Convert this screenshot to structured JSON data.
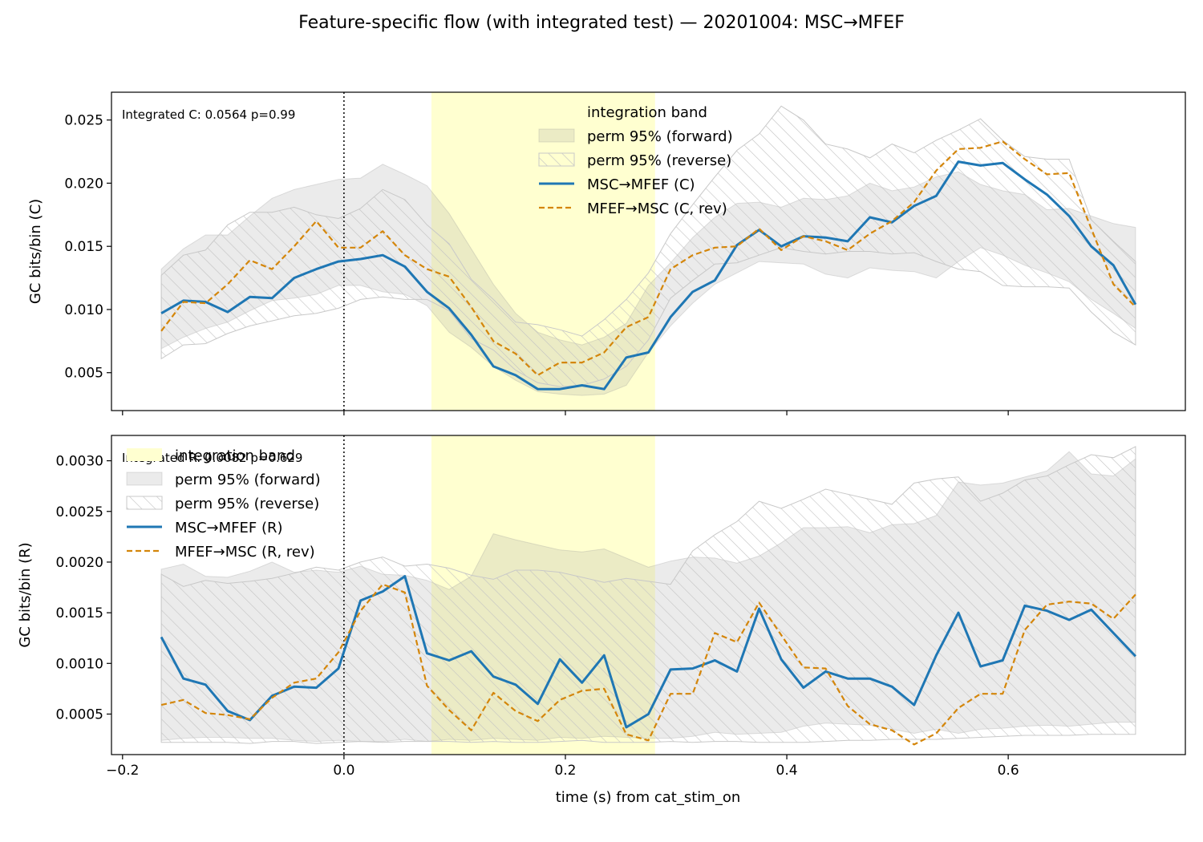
{
  "title": "Feature-specific flow (with integrated test) — 20201004: MSC→MFEF",
  "xlabel": "time (s) from cat_stim_on",
  "colors": {
    "forward": "#1f77b4",
    "reverse": "#d4860b",
    "band": "#ffffd0",
    "perm_fill": "#d8d8d8",
    "hatch": "#c8c8c8"
  },
  "chart_data": [
    {
      "type": "line",
      "ylabel": "GC bits/bin (C)",
      "xlim": [
        -0.21,
        0.76
      ],
      "ylim": [
        0.002,
        0.0272
      ],
      "xticks": [
        "−0.2",
        "0.0",
        "0.2",
        "0.4",
        "0.6"
      ],
      "yticks": [
        "0.005",
        "0.010",
        "0.015",
        "0.020",
        "0.025"
      ],
      "xtick_values": [
        -0.2,
        0.0,
        0.2,
        0.4,
        0.6
      ],
      "ytick_values": [
        0.005,
        0.01,
        0.015,
        0.02,
        0.025
      ],
      "show_xtick_labels": false,
      "annotation": "Integrated C: 0.0564  p=0.99",
      "integration_band": [
        0.079,
        0.281
      ],
      "event_line_x": 0.0,
      "legend_position": "upper center",
      "legend": [
        "integration band",
        "perm 95% (forward)",
        "perm 95% (reverse)",
        "MSC→MFEF (C)",
        "MFEF→MSC (C, rev)"
      ],
      "x": [
        -0.165,
        -0.145,
        -0.125,
        -0.105,
        -0.085,
        -0.065,
        -0.045,
        -0.025,
        -0.005,
        0.015,
        0.035,
        0.055,
        0.075,
        0.095,
        0.115,
        0.135,
        0.155,
        0.175,
        0.195,
        0.215,
        0.235,
        0.255,
        0.275,
        0.295,
        0.315,
        0.335,
        0.355,
        0.375,
        0.395,
        0.415,
        0.435,
        0.455,
        0.475,
        0.495,
        0.515,
        0.535,
        0.555,
        0.575,
        0.595,
        0.615,
        0.635,
        0.655,
        0.675,
        0.695,
        0.715
      ],
      "series": [
        {
          "name": "MSC→MFEF (C)",
          "style": "solid",
          "values": [
            0.0097,
            0.0107,
            0.0106,
            0.0098,
            0.011,
            0.0109,
            0.0125,
            0.0132,
            0.0138,
            0.014,
            0.0143,
            0.0134,
            0.0114,
            0.0101,
            0.008,
            0.0055,
            0.0048,
            0.0037,
            0.0037,
            0.004,
            0.0037,
            0.0062,
            0.0066,
            0.0094,
            0.0114,
            0.0123,
            0.0151,
            0.0163,
            0.015,
            0.0158,
            0.0157,
            0.0154,
            0.0173,
            0.0169,
            0.0182,
            0.019,
            0.0217,
            0.0214,
            0.0216,
            0.0203,
            0.0191,
            0.0174,
            0.015,
            0.0135,
            0.0104
          ]
        },
        {
          "name": "MFEF→MSC (C, rev)",
          "style": "dashed",
          "values": [
            0.0083,
            0.0106,
            0.0105,
            0.012,
            0.0139,
            0.0132,
            0.015,
            0.017,
            0.0149,
            0.0149,
            0.0162,
            0.0143,
            0.0132,
            0.0126,
            0.0102,
            0.0075,
            0.0065,
            0.0048,
            0.0058,
            0.0058,
            0.0066,
            0.0086,
            0.0094,
            0.0132,
            0.0143,
            0.0149,
            0.015,
            0.0164,
            0.0147,
            0.0158,
            0.0154,
            0.0147,
            0.016,
            0.017,
            0.0185,
            0.021,
            0.0227,
            0.0228,
            0.0233,
            0.0219,
            0.0207,
            0.0208,
            0.0164,
            0.012,
            0.0102
          ]
        }
      ],
      "perm_forward": {
        "upper": [
          0.0132,
          0.0148,
          0.0159,
          0.0159,
          0.0174,
          0.0188,
          0.0195,
          0.0199,
          0.0203,
          0.0204,
          0.0215,
          0.0207,
          0.0198,
          0.0176,
          0.0148,
          0.012,
          0.0097,
          0.0082,
          0.0076,
          0.0072,
          0.0078,
          0.0089,
          0.0119,
          0.0137,
          0.0157,
          0.0173,
          0.0184,
          0.0185,
          0.0181,
          0.0188,
          0.0187,
          0.019,
          0.02,
          0.0194,
          0.0197,
          0.0205,
          0.0209,
          0.0199,
          0.0194,
          0.0191,
          0.0179,
          0.018,
          0.0174,
          0.0168,
          0.0165
        ],
        "lower": [
          0.0069,
          0.0078,
          0.0085,
          0.009,
          0.0099,
          0.0107,
          0.0109,
          0.0112,
          0.0119,
          0.0119,
          0.0114,
          0.0112,
          0.0103,
          0.0082,
          0.007,
          0.0055,
          0.0044,
          0.0035,
          0.0033,
          0.0032,
          0.0033,
          0.004,
          0.0066,
          0.0087,
          0.0105,
          0.012,
          0.0129,
          0.0138,
          0.0137,
          0.0136,
          0.0128,
          0.0125,
          0.0133,
          0.0131,
          0.013,
          0.0125,
          0.0138,
          0.0149,
          0.0143,
          0.0135,
          0.0129,
          0.0122,
          0.0108,
          0.0097,
          0.0085
        ]
      },
      "perm_reverse": {
        "upper": [
          0.0127,
          0.0143,
          0.0147,
          0.0167,
          0.0177,
          0.0177,
          0.0181,
          0.0175,
          0.0172,
          0.018,
          0.0195,
          0.0187,
          0.0167,
          0.0152,
          0.0124,
          0.0108,
          0.009,
          0.0088,
          0.0084,
          0.0079,
          0.0092,
          0.0108,
          0.0129,
          0.016,
          0.0183,
          0.0205,
          0.0226,
          0.0239,
          0.0261,
          0.025,
          0.0231,
          0.0227,
          0.022,
          0.0231,
          0.0224,
          0.0234,
          0.0242,
          0.0251,
          0.0234,
          0.0221,
          0.0219,
          0.0219,
          0.0171,
          0.0154,
          0.0138
        ],
        "lower": [
          0.0061,
          0.0072,
          0.0073,
          0.0081,
          0.0087,
          0.0091,
          0.0095,
          0.0097,
          0.0101,
          0.0108,
          0.011,
          0.0108,
          0.0108,
          0.0099,
          0.0077,
          0.0068,
          0.0052,
          0.0042,
          0.0039,
          0.004,
          0.0045,
          0.0055,
          0.0076,
          0.0109,
          0.0123,
          0.0136,
          0.0137,
          0.0143,
          0.0149,
          0.0146,
          0.0144,
          0.0146,
          0.0146,
          0.0144,
          0.0145,
          0.0138,
          0.0132,
          0.013,
          0.0119,
          0.0118,
          0.0118,
          0.0117,
          0.0098,
          0.0082,
          0.0072
        ]
      }
    },
    {
      "type": "line",
      "ylabel": "GC bits/bin (R)",
      "xlim": [
        -0.21,
        0.76
      ],
      "ylim": [
        0.0001,
        0.00325
      ],
      "xticks": [
        "−0.2",
        "0.0",
        "0.2",
        "0.4",
        "0.6"
      ],
      "yticks": [
        "0.0005",
        "0.0010",
        "0.0015",
        "0.0020",
        "0.0025",
        "0.0030"
      ],
      "xtick_values": [
        -0.2,
        0.0,
        0.2,
        0.4,
        0.6
      ],
      "ytick_values": [
        0.0005,
        0.001,
        0.0015,
        0.002,
        0.0025,
        0.003
      ],
      "show_xtick_labels": true,
      "annotation": "Integrated R: 0.0082  p=0.629",
      "integration_band": [
        0.079,
        0.281
      ],
      "event_line_x": 0.0,
      "legend_position": "upper left",
      "legend": [
        "integration band",
        "perm 95% (forward)",
        "perm 95% (reverse)",
        "MSC→MFEF (R)",
        "MFEF→MSC (R, rev)"
      ],
      "x": [
        -0.165,
        -0.145,
        -0.125,
        -0.105,
        -0.085,
        -0.065,
        -0.045,
        -0.025,
        -0.005,
        0.015,
        0.035,
        0.055,
        0.075,
        0.095,
        0.115,
        0.135,
        0.155,
        0.175,
        0.195,
        0.215,
        0.235,
        0.255,
        0.275,
        0.295,
        0.315,
        0.335,
        0.355,
        0.375,
        0.395,
        0.415,
        0.435,
        0.455,
        0.475,
        0.495,
        0.515,
        0.535,
        0.555,
        0.575,
        0.595,
        0.615,
        0.635,
        0.655,
        0.675,
        0.695,
        0.715
      ],
      "series": [
        {
          "name": "MSC→MFEF (R)",
          "style": "solid",
          "values": [
            0.00126,
            0.00085,
            0.00079,
            0.00053,
            0.00044,
            0.00068,
            0.00077,
            0.00076,
            0.00095,
            0.00162,
            0.00171,
            0.00186,
            0.0011,
            0.00103,
            0.00112,
            0.00087,
            0.00079,
            0.0006,
            0.00104,
            0.00081,
            0.00108,
            0.00037,
            0.0005,
            0.00094,
            0.00095,
            0.00103,
            0.00092,
            0.00154,
            0.00104,
            0.00076,
            0.00092,
            0.00085,
            0.00085,
            0.00077,
            0.00059,
            0.00108,
            0.0015,
            0.00097,
            0.00103,
            0.00157,
            0.00152,
            0.00143,
            0.00153,
            0.0013,
            0.00107
          ]
        },
        {
          "name": "MFEF→MSC (R, rev)",
          "style": "dashed",
          "values": [
            0.00059,
            0.00064,
            0.00051,
            0.00049,
            0.00045,
            0.00066,
            0.00081,
            0.00085,
            0.00111,
            0.00152,
            0.00178,
            0.0017,
            0.00078,
            0.00054,
            0.00034,
            0.00071,
            0.00053,
            0.00043,
            0.00064,
            0.00073,
            0.00075,
            0.0003,
            0.00024,
            0.0007,
            0.0007,
            0.0013,
            0.00121,
            0.0016,
            0.00128,
            0.00096,
            0.00095,
            0.00058,
            0.0004,
            0.00034,
            0.0002,
            0.00031,
            0.00056,
            0.0007,
            0.0007,
            0.00133,
            0.00158,
            0.00161,
            0.00159,
            0.00144,
            0.00168
          ]
        }
      ],
      "perm_forward": {
        "upper": [
          0.00193,
          0.00198,
          0.00186,
          0.00185,
          0.00191,
          0.002,
          0.0019,
          0.00192,
          0.0019,
          0.00196,
          0.00188,
          0.00187,
          0.00182,
          0.00173,
          0.00186,
          0.00228,
          0.00222,
          0.00217,
          0.00212,
          0.0021,
          0.00213,
          0.00204,
          0.00195,
          0.00201,
          0.00205,
          0.00204,
          0.00199,
          0.00206,
          0.00219,
          0.00234,
          0.00234,
          0.00235,
          0.00229,
          0.00237,
          0.00238,
          0.00246,
          0.00279,
          0.00276,
          0.00278,
          0.00284,
          0.0029,
          0.00309,
          0.00287,
          0.00285,
          0.00302
        ],
        "lower": [
          0.00024,
          0.00026,
          0.00027,
          0.00027,
          0.00026,
          0.00026,
          0.00024,
          0.00023,
          0.00024,
          0.00023,
          0.00023,
          0.00025,
          0.00023,
          0.00025,
          0.00024,
          0.00026,
          0.00025,
          0.00024,
          0.00027,
          0.00026,
          0.00028,
          0.00027,
          0.00026,
          0.00026,
          0.00028,
          0.00032,
          0.0003,
          0.00031,
          0.00032,
          0.00038,
          0.00041,
          0.0004,
          0.00039,
          0.00035,
          0.00031,
          0.00035,
          0.00031,
          0.00035,
          0.00036,
          0.00038,
          0.00039,
          0.00038,
          0.0004,
          0.00042,
          0.00042
        ]
      },
      "perm_reverse": {
        "upper": [
          0.00188,
          0.00176,
          0.00182,
          0.00179,
          0.00181,
          0.00184,
          0.00189,
          0.00195,
          0.00192,
          0.002,
          0.00205,
          0.00196,
          0.00198,
          0.00194,
          0.00187,
          0.00183,
          0.00192,
          0.00192,
          0.0019,
          0.00185,
          0.0018,
          0.00184,
          0.00181,
          0.00178,
          0.00211,
          0.00227,
          0.0024,
          0.0026,
          0.00253,
          0.00262,
          0.00272,
          0.00267,
          0.00262,
          0.00257,
          0.00278,
          0.00282,
          0.00284,
          0.0026,
          0.00268,
          0.00281,
          0.00285,
          0.00296,
          0.00306,
          0.00303,
          0.00314
        ],
        "lower": [
          0.00022,
          0.00022,
          0.00022,
          0.00022,
          0.00021,
          0.00023,
          0.00023,
          0.00021,
          0.00022,
          0.00023,
          0.00022,
          0.00023,
          0.00023,
          0.00023,
          0.00022,
          0.00023,
          0.00022,
          0.00022,
          0.00023,
          0.00024,
          0.00022,
          0.00022,
          0.00022,
          0.00023,
          0.00022,
          0.00023,
          0.00023,
          0.00022,
          0.00022,
          0.00022,
          0.00023,
          0.00024,
          0.00024,
          0.00025,
          0.00025,
          0.00025,
          0.00026,
          0.00027,
          0.00028,
          0.00029,
          0.00029,
          0.00029,
          0.0003,
          0.0003,
          0.0003
        ]
      }
    }
  ]
}
